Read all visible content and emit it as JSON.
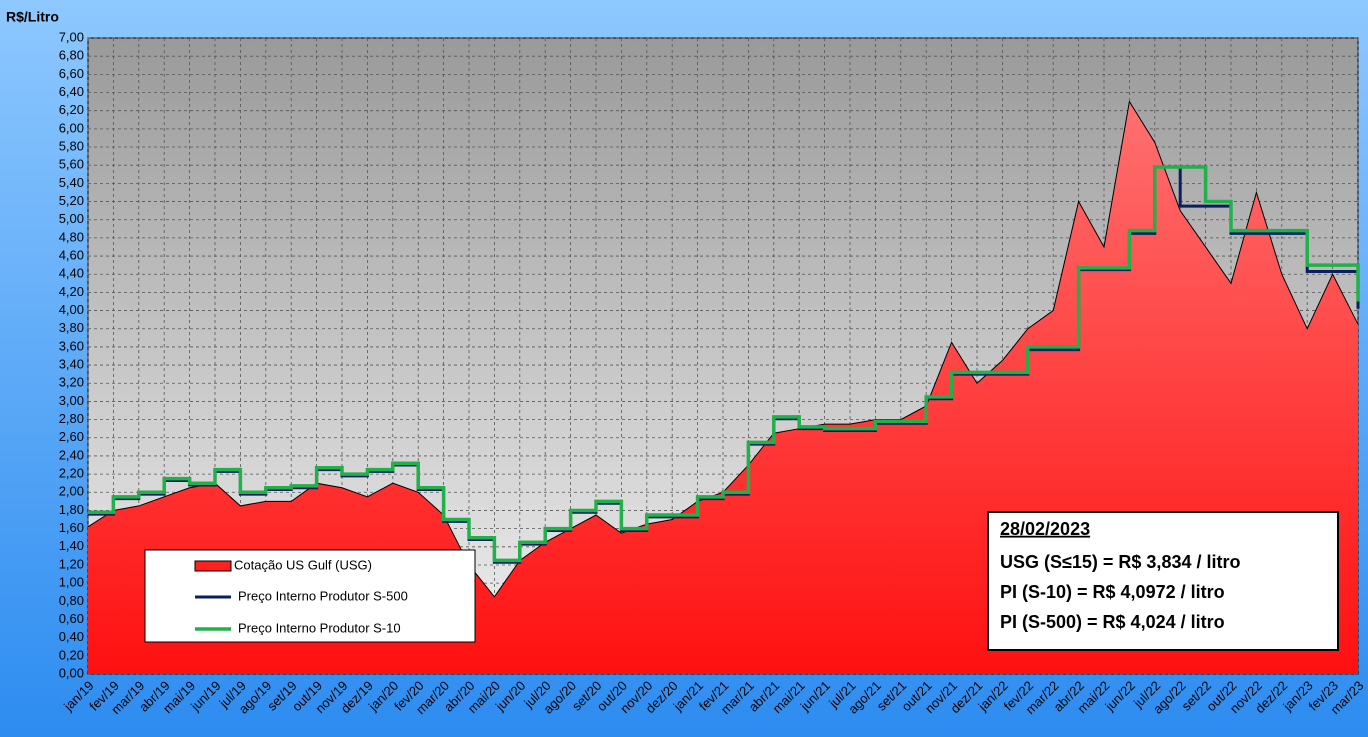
{
  "chart_data": {
    "type": "area_step",
    "y_label": "R$/Litro",
    "categories": [
      "jan/19",
      "fev/19",
      "mar/19",
      "abr/19",
      "mai/19",
      "jun/19",
      "jul/19",
      "ago/19",
      "set/19",
      "out/19",
      "nov/19",
      "dez/19",
      "jan/20",
      "fev/20",
      "mar/20",
      "abr/20",
      "mai/20",
      "jun/20",
      "jul/20",
      "ago/20",
      "set/20",
      "out/20",
      "nov/20",
      "dez/20",
      "jan/21",
      "fev/21",
      "mar/21",
      "abr/21",
      "mai/21",
      "jun/21",
      "jul/21",
      "ago/21",
      "set/21",
      "out/21",
      "nov/21",
      "dez/21",
      "jan/22",
      "fev/22",
      "mar/22",
      "abr/22",
      "mai/22",
      "jun/22",
      "jul/22",
      "ago/22",
      "set/22",
      "out/22",
      "nov/22",
      "dez/22",
      "jan/23",
      "fev/23",
      "mar/23"
    ],
    "series": [
      {
        "name": "Cotação US Gulf (USG)",
        "color": "#ff2020",
        "values": [
          1.62,
          1.8,
          1.85,
          1.95,
          2.05,
          2.1,
          1.85,
          1.9,
          1.9,
          2.1,
          2.05,
          1.95,
          2.1,
          2.0,
          1.75,
          1.2,
          0.85,
          1.25,
          1.45,
          1.6,
          1.75,
          1.55,
          1.65,
          1.7,
          1.9,
          2.0,
          2.3,
          2.65,
          2.7,
          2.75,
          2.75,
          2.8,
          2.8,
          2.95,
          3.65,
          3.2,
          3.45,
          3.8,
          4.0,
          5.2,
          4.7,
          6.3,
          5.85,
          5.1,
          4.7,
          4.3,
          5.3,
          4.4,
          3.8,
          4.4,
          3.85
        ]
      },
      {
        "name": "Preço Interno Produtor S-500",
        "color": "#0a1f5c",
        "values": [
          1.76,
          1.93,
          1.98,
          2.13,
          2.08,
          2.23,
          1.98,
          2.03,
          2.05,
          2.25,
          2.18,
          2.23,
          2.3,
          2.03,
          1.68,
          1.48,
          1.23,
          1.43,
          1.58,
          1.78,
          1.88,
          1.58,
          1.73,
          1.73,
          1.93,
          1.98,
          2.53,
          2.81,
          2.7,
          2.68,
          2.68,
          2.76,
          2.76,
          3.03,
          3.3,
          3.3,
          3.3,
          3.57,
          3.57,
          4.45,
          4.45,
          4.85,
          5.58,
          5.15,
          5.15,
          4.85,
          4.85,
          4.85,
          4.43,
          4.43,
          4.02
        ]
      },
      {
        "name": "Preço Interno Produtor S-10",
        "color": "#22b04a",
        "values": [
          1.78,
          1.95,
          2.0,
          2.15,
          2.1,
          2.25,
          2.0,
          2.05,
          2.07,
          2.27,
          2.2,
          2.25,
          2.32,
          2.05,
          1.7,
          1.5,
          1.25,
          1.45,
          1.6,
          1.8,
          1.9,
          1.6,
          1.75,
          1.75,
          1.95,
          2.0,
          2.55,
          2.83,
          2.72,
          2.7,
          2.7,
          2.78,
          2.78,
          3.05,
          3.32,
          3.32,
          3.32,
          3.6,
          3.6,
          4.47,
          4.47,
          4.88,
          5.58,
          5.58,
          5.2,
          4.88,
          4.88,
          4.88,
          4.5,
          4.5,
          4.1
        ]
      }
    ],
    "ylim": [
      0,
      7
    ],
    "yticks": [
      {
        "value": 0,
        "label": "0,00"
      },
      {
        "value": 0.2,
        "label": "0,20"
      },
      {
        "value": 0.4,
        "label": "0,40"
      },
      {
        "value": 0.6,
        "label": "0,60"
      },
      {
        "value": 0.8,
        "label": "0,80"
      },
      {
        "value": 1,
        "label": "1,00"
      },
      {
        "value": 1.2,
        "label": "1,20"
      },
      {
        "value": 1.4,
        "label": "1,40"
      },
      {
        "value": 1.6,
        "label": "1,60"
      },
      {
        "value": 1.8,
        "label": "1,80"
      },
      {
        "value": 2,
        "label": "2,00"
      },
      {
        "value": 2.2,
        "label": "2,20"
      },
      {
        "value": 2.4,
        "label": "2,40"
      },
      {
        "value": 2.6,
        "label": "2,60"
      },
      {
        "value": 2.8,
        "label": "2,80"
      },
      {
        "value": 3,
        "label": "3,00"
      },
      {
        "value": 3.2,
        "label": "3,20"
      },
      {
        "value": 3.4,
        "label": "3,40"
      },
      {
        "value": 3.6,
        "label": "3,60"
      },
      {
        "value": 3.8,
        "label": "3,80"
      },
      {
        "value": 4,
        "label": "4,00"
      },
      {
        "value": 4.2,
        "label": "4,20"
      },
      {
        "value": 4.4,
        "label": "4,40"
      },
      {
        "value": 4.6,
        "label": "4,60"
      },
      {
        "value": 4.8,
        "label": "4,80"
      },
      {
        "value": 5,
        "label": "5,00"
      },
      {
        "value": 5.2,
        "label": "5,20"
      },
      {
        "value": 5.4,
        "label": "5,40"
      },
      {
        "value": 5.6,
        "label": "5,60"
      },
      {
        "value": 5.8,
        "label": "5,80"
      },
      {
        "value": 6,
        "label": "6,00"
      },
      {
        "value": 6.2,
        "label": "6,20"
      },
      {
        "value": 6.4,
        "label": "6,40"
      },
      {
        "value": 6.6,
        "label": "6,60"
      },
      {
        "value": 6.8,
        "label": "6,80"
      },
      {
        "value": 7,
        "label": "7,00"
      }
    ],
    "grid": true,
    "annotation": {
      "date": "28/02/2023",
      "lines": [
        "USG (S≤15) = R$ 3,834 / litro",
        "PI (S-10) = R$ 4,0972 / litro",
        "PI (S-500) = R$ 4,024 / litro"
      ]
    }
  }
}
